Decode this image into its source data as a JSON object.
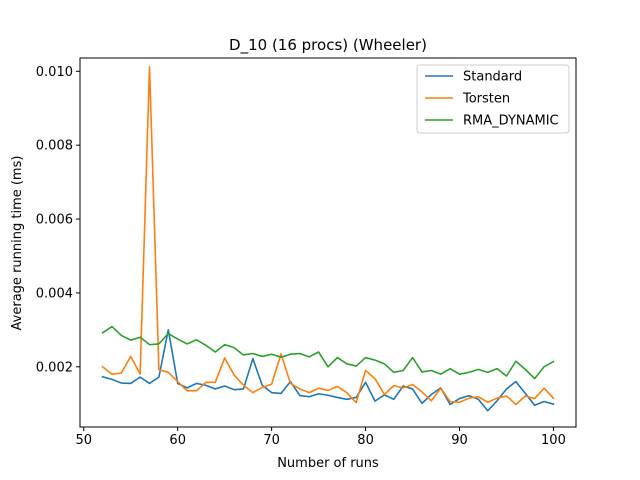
{
  "chart_data": {
    "type": "line",
    "title": "D_10 (16 procs) (Wheeler)",
    "xlabel": "Number of runs",
    "ylabel": "Average running time (ms)",
    "xlim": [
      49.6,
      102.4
    ],
    "ylim": [
      0.00037,
      0.01036
    ],
    "xticks": [
      50,
      60,
      70,
      80,
      90,
      100
    ],
    "yticks": [
      0.002,
      0.004,
      0.006,
      0.008,
      0.01
    ],
    "ytick_labels": [
      "0.002",
      "0.004",
      "0.006",
      "0.008",
      "0.010"
    ],
    "legend_position": "top-right",
    "grid": false,
    "x": [
      52,
      53,
      54,
      55,
      56,
      57,
      58,
      59,
      60,
      61,
      62,
      63,
      64,
      65,
      66,
      67,
      68,
      69,
      70,
      71,
      72,
      73,
      74,
      75,
      76,
      77,
      78,
      79,
      80,
      81,
      82,
      83,
      84,
      85,
      86,
      87,
      88,
      89,
      90,
      91,
      92,
      93,
      94,
      95,
      96,
      97,
      98,
      99,
      100
    ],
    "series": [
      {
        "name": "Standard",
        "color": "#1f77b4",
        "values": [
          0.00173,
          0.00166,
          0.00156,
          0.00155,
          0.00172,
          0.00155,
          0.00172,
          0.003,
          0.00155,
          0.00143,
          0.00155,
          0.0015,
          0.0014,
          0.00148,
          0.00138,
          0.0014,
          0.00222,
          0.0015,
          0.0013,
          0.00128,
          0.0016,
          0.00122,
          0.00119,
          0.00127,
          0.00123,
          0.00117,
          0.00112,
          0.00117,
          0.00158,
          0.00107,
          0.00124,
          0.00112,
          0.00148,
          0.0014,
          0.00101,
          0.00125,
          0.00143,
          0.00098,
          0.00114,
          0.00122,
          0.00112,
          0.00081,
          0.00108,
          0.0014,
          0.0016,
          0.00128,
          0.00096,
          0.00106,
          0.00099
        ]
      },
      {
        "name": "Torsten",
        "color": "#ff7f0e",
        "values": [
          0.002,
          0.0018,
          0.00183,
          0.00228,
          0.0018,
          0.01012,
          0.00192,
          0.00185,
          0.0016,
          0.00135,
          0.00135,
          0.00158,
          0.00158,
          0.00224,
          0.00178,
          0.0015,
          0.0013,
          0.00144,
          0.00153,
          0.00235,
          0.00155,
          0.0014,
          0.0013,
          0.00142,
          0.00136,
          0.00147,
          0.0013,
          0.00103,
          0.0019,
          0.00168,
          0.00125,
          0.00149,
          0.00143,
          0.00152,
          0.00132,
          0.00108,
          0.00142,
          0.00106,
          0.00104,
          0.00115,
          0.00119,
          0.00104,
          0.00115,
          0.00121,
          0.00098,
          0.00121,
          0.00114,
          0.00142,
          0.00115
        ]
      },
      {
        "name": "RMA_DYNAMIC",
        "color": "#2ca02c",
        "values": [
          0.00292,
          0.00309,
          0.00285,
          0.00272,
          0.0028,
          0.0026,
          0.00262,
          0.0029,
          0.00275,
          0.00262,
          0.00273,
          0.00258,
          0.0024,
          0.0026,
          0.00252,
          0.00232,
          0.00236,
          0.00228,
          0.00234,
          0.00226,
          0.00234,
          0.00236,
          0.00227,
          0.0024,
          0.002,
          0.00225,
          0.00208,
          0.00202,
          0.00225,
          0.00218,
          0.00208,
          0.00185,
          0.0019,
          0.00225,
          0.00186,
          0.0019,
          0.0018,
          0.00195,
          0.0018,
          0.00185,
          0.00193,
          0.00185,
          0.00195,
          0.00175,
          0.00215,
          0.00193,
          0.00168,
          0.002,
          0.00214
        ]
      }
    ]
  }
}
